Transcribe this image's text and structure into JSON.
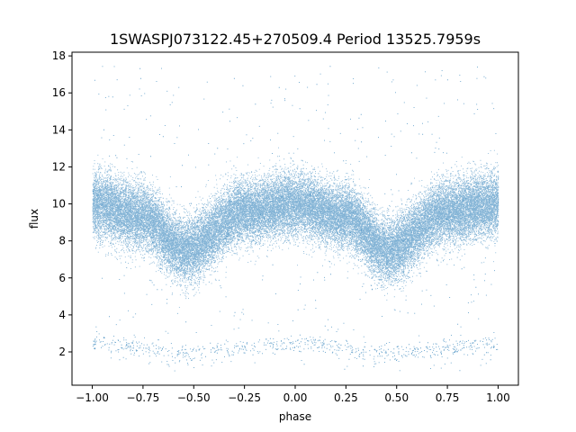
{
  "chart_data": {
    "type": "scatter",
    "title": "1SWASPJ073122.45+270509.4 Period 13525.7959s",
    "xlabel": "phase",
    "ylabel": "flux",
    "xlim": [
      -1.1,
      1.1
    ],
    "ylim": [
      0.2,
      18.2
    ],
    "x_ticks": [
      -1.0,
      -0.75,
      -0.5,
      -0.25,
      0.0,
      0.25,
      0.5,
      0.75,
      1.0
    ],
    "x_tick_labels": [
      "−1.00",
      "−0.75",
      "−0.50",
      "−0.25",
      "0.00",
      "0.25",
      "0.50",
      "0.75",
      "1.00"
    ],
    "y_ticks": [
      2,
      4,
      6,
      8,
      10,
      12,
      14,
      16,
      18
    ],
    "y_tick_labels": [
      "2",
      "4",
      "6",
      "8",
      "10",
      "12",
      "14",
      "16",
      "18"
    ],
    "grid": false,
    "marker_color": "#1f77b4",
    "series": [
      {
        "phase_range": [
          -1.0,
          1.0
        ],
        "point_count_approx": 40000,
        "profile": [
          {
            "phase": -1.0,
            "flux": 10.0
          },
          {
            "phase": -0.75,
            "flux": 9.3
          },
          {
            "phase": -0.55,
            "flux": 7.5
          },
          {
            "phase": -0.25,
            "flux": 9.6
          },
          {
            "phase": 0.0,
            "flux": 10.0
          },
          {
            "phase": 0.25,
            "flux": 9.3
          },
          {
            "phase": 0.45,
            "flux": 7.5
          },
          {
            "phase": 0.75,
            "flux": 9.6
          },
          {
            "phase": 1.0,
            "flux": 10.0
          }
        ],
        "scatter_sd": 0.85
      },
      {
        "phase_range": [
          -1.0,
          1.0
        ],
        "point_count_approx": 700,
        "profile": [
          {
            "phase": -1.0,
            "flux": 2.5
          },
          {
            "phase": -0.55,
            "flux": 1.9
          },
          {
            "phase": 0.0,
            "flux": 2.5
          },
          {
            "phase": 0.45,
            "flux": 1.9
          },
          {
            "phase": 1.0,
            "flux": 2.5
          }
        ],
        "scatter_sd": 0.25
      },
      {
        "phase_range": [
          -1.0,
          1.0
        ],
        "point_count_approx": 500,
        "flux_range": [
          1.0,
          17.5
        ]
      }
    ]
  }
}
